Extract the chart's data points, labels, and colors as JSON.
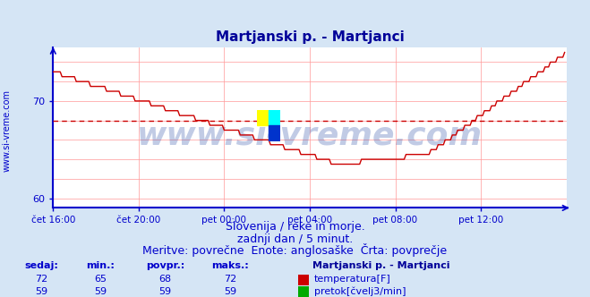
{
  "title": "Martjanski p. - Martjanci",
  "title_color": "#000099",
  "bg_color": "#d5e5f5",
  "plot_bg_color": "#ffffff",
  "grid_color": "#ff9999",
  "axis_color": "#0000cc",
  "tick_color": "#0000cc",
  "xlim": [
    0,
    288
  ],
  "ylim": [
    59,
    75.5
  ],
  "yticks": [
    60,
    70
  ],
  "xtick_labels": [
    "čet 16:00",
    "čet 20:00",
    "pet 00:00",
    "pet 04:00",
    "pet 08:00",
    "pet 12:00"
  ],
  "xtick_positions": [
    0,
    48,
    96,
    144,
    192,
    240
  ],
  "avg_line_y": 68.0,
  "avg_line_color": "#cc0000",
  "temp_color": "#cc0000",
  "flow_color": "#00aa00",
  "flow_value": 59,
  "subtitle1": "Slovenija / reke in morje.",
  "subtitle2": "zadnji dan / 5 minut.",
  "subtitle3": "Meritve: povrečne  Enote: anglosaške  Črta: povprečje",
  "subtitle_color": "#0000cc",
  "subtitle_fontsize": 9,
  "legend_title": "Martjanski p. - Martjanci",
  "legend_title_color": "#000099",
  "stats_headers": [
    "sedaj:",
    "min.:",
    "povpr.:",
    "maks.:"
  ],
  "stats_temp": [
    72,
    65,
    68,
    72
  ],
  "stats_flow": [
    59,
    59,
    59,
    59
  ],
  "stats_color": "#0000cc",
  "label_temp": "temperatura[F]",
  "label_flow": "pretok[čvelj3/min]",
  "watermark": "www.si-vreme.com",
  "watermark_color": "#3355aa",
  "watermark_alpha": 0.3,
  "watermark_fontsize": 26,
  "ylabel_text": "www.si-vreme.com",
  "ylabel_color": "#0000cc",
  "ylabel_fontsize": 7,
  "grid_yticks": [
    60,
    62,
    64,
    66,
    68,
    70,
    72,
    74
  ],
  "logo_colors": [
    "#ffff00",
    "#00ffff",
    "#0033cc"
  ]
}
